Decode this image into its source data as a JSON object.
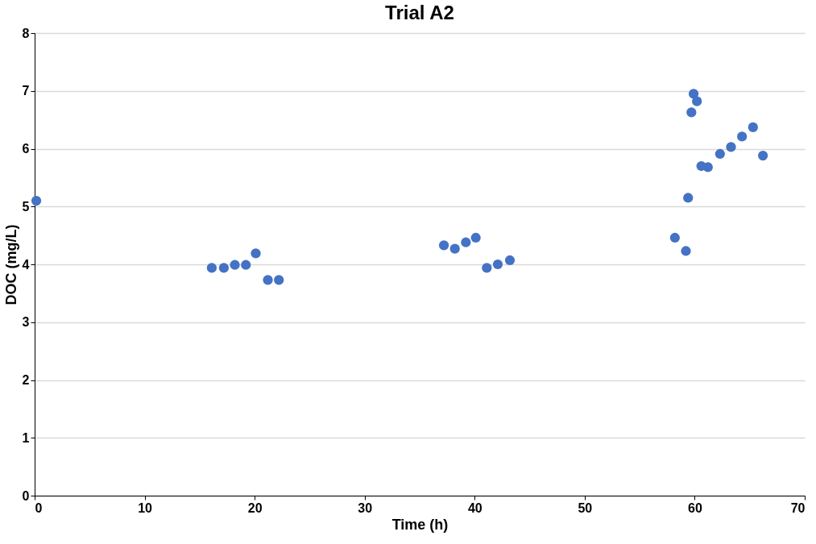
{
  "chart_data": {
    "type": "scatter",
    "title": "Trial A2",
    "xlabel": "Time (h)",
    "ylabel": "DOC (mg/L)",
    "x": [
      0.15,
      16.1,
      17.2,
      18.2,
      19.2,
      20.1,
      21.2,
      22.2,
      37.2,
      38.2,
      39.2,
      40.1,
      41.1,
      42.1,
      43.2,
      58.2,
      59.2,
      59.4,
      59.7,
      59.9,
      60.2,
      60.6,
      61.2,
      62.3,
      63.3,
      64.3,
      65.3,
      66.2
    ],
    "series": [
      {
        "color": "#4472c4",
        "values": [
          5.1,
          3.94,
          3.94,
          3.99,
          3.99,
          4.19,
          3.73,
          3.73,
          4.33,
          4.27,
          4.38,
          4.46,
          3.94,
          4.0,
          4.07,
          4.46,
          4.23,
          5.15,
          6.63,
          6.95,
          6.82,
          5.7,
          5.68,
          5.91,
          6.03,
          6.21,
          6.37,
          5.88
        ]
      }
    ],
    "xlim": [
      0,
      70
    ],
    "xticks": [
      0,
      10,
      20,
      30,
      40,
      50,
      60,
      70
    ],
    "ylim": [
      0,
      8
    ],
    "yticks": [
      0,
      1,
      2,
      3,
      4,
      5,
      6,
      7,
      8
    ],
    "grid": "y",
    "marker": "circle",
    "legend": false
  }
}
